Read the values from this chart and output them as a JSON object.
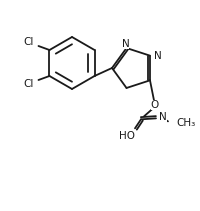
{
  "background_color": "#ffffff",
  "line_color": "#1a1a1a",
  "line_width": 1.3,
  "figsize": [
    2.01,
    2.11
  ],
  "dpi": 100,
  "font_size": 7.5,
  "label_Cl": "Cl",
  "label_N": "N",
  "label_O": "O",
  "label_HO": "HO",
  "label_CH3": "CH₃"
}
